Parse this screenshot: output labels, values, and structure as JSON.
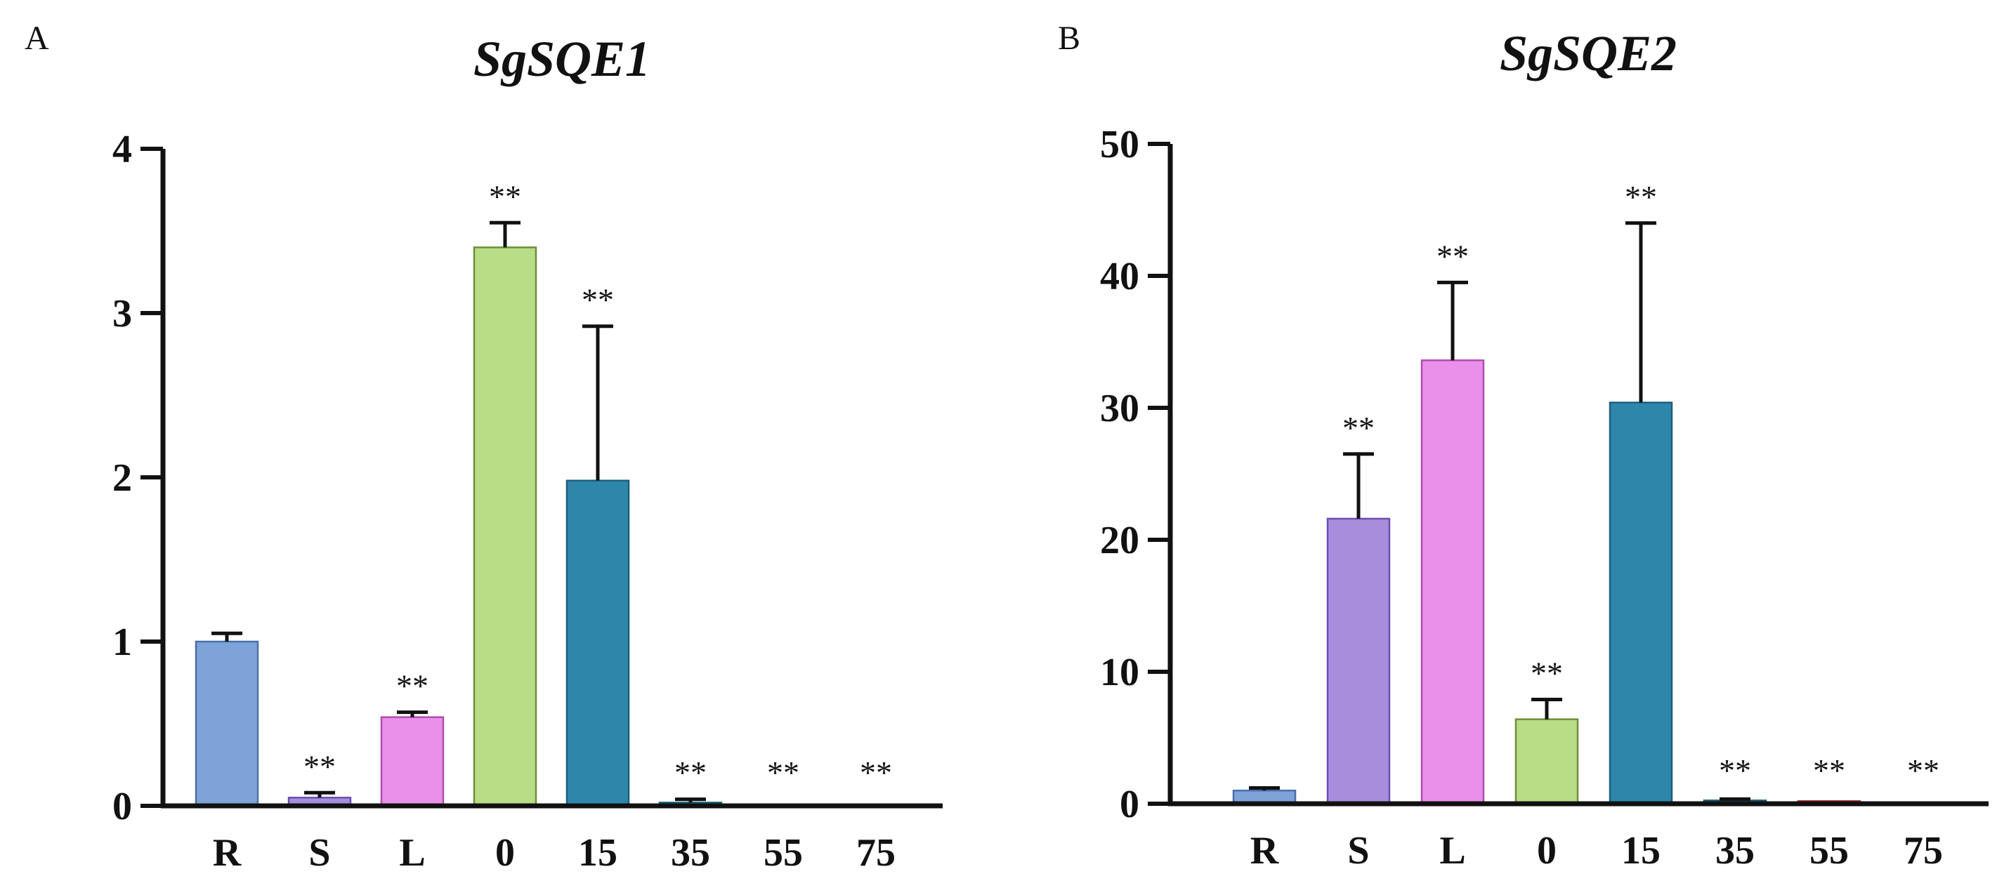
{
  "chart_data": [
    {
      "panel": "A",
      "type": "bar",
      "title": "SgSQE1",
      "xlabel": "",
      "ylabel": "",
      "ylim": [
        0,
        4
      ],
      "yticks": [
        0,
        1,
        2,
        3,
        4
      ],
      "categories": [
        "R",
        "S",
        "L",
        "0",
        "15",
        "35",
        "55",
        "75"
      ],
      "values": [
        1.0,
        0.05,
        0.54,
        3.4,
        1.98,
        0.02,
        0.005,
        0.003
      ],
      "errors": [
        0.05,
        0.03,
        0.03,
        0.15,
        0.94,
        0.02,
        0.0,
        0.0
      ],
      "significance": [
        "",
        "**",
        "**",
        "**",
        "**",
        "**",
        "**",
        "**"
      ],
      "colors": [
        "#7ea3d8",
        "#a78ddc",
        "#ea90ea",
        "#b9dc87",
        "#2e86ab",
        "#2e86ab",
        "#d94c4c",
        "#7ea3d8"
      ],
      "edge_colors": [
        "#4a6fa8",
        "#6b4fb0",
        "#b04cb0",
        "#6a8f3a",
        "#1d5f7c",
        "#1d5f7c",
        "#a83030",
        "#4a6fa8"
      ]
    },
    {
      "panel": "B",
      "type": "bar",
      "title": "SgSQE2",
      "xlabel": "",
      "ylabel": "",
      "ylim": [
        0,
        50
      ],
      "yticks": [
        0,
        10,
        20,
        30,
        40,
        50
      ],
      "categories": [
        "R",
        "S",
        "L",
        "0",
        "15",
        "35",
        "55",
        "75"
      ],
      "values": [
        1.0,
        21.6,
        33.6,
        6.4,
        30.4,
        0.25,
        0.2,
        0.05
      ],
      "errors": [
        0.2,
        4.9,
        5.9,
        1.5,
        13.6,
        0.1,
        0.0,
        0.0
      ],
      "significance": [
        "",
        "**",
        "**",
        "**",
        "**",
        "**",
        "**",
        "**"
      ],
      "colors": [
        "#7ea3d8",
        "#a78ddc",
        "#ea90ea",
        "#b9dc87",
        "#2e86ab",
        "#2e86ab",
        "#d94c4c",
        "#7ea3d8"
      ],
      "edge_colors": [
        "#4a6fa8",
        "#6b4fb0",
        "#b04cb0",
        "#6a8f3a",
        "#1d5f7c",
        "#1d5f7c",
        "#a83030",
        "#4a6fa8"
      ]
    }
  ]
}
